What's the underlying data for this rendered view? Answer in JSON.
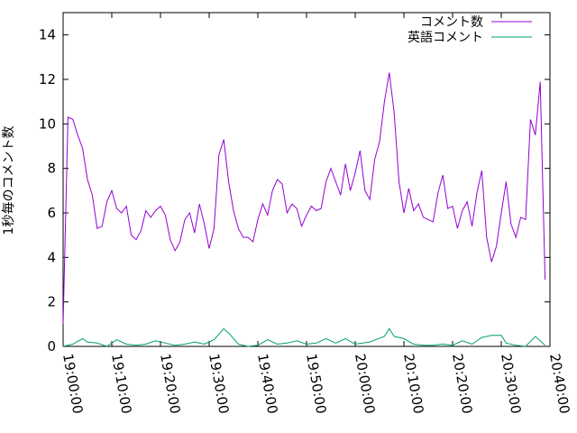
{
  "chart_data": {
    "type": "line",
    "title": "",
    "xlabel": "",
    "ylabel": "1秒毎のコメント数",
    "xlim": [
      "19:00:00",
      "20:40:00"
    ],
    "ylim": [
      0,
      15
    ],
    "x_ticks": [
      "19:00:00",
      "19:10:00",
      "19:20:00",
      "19:30:00",
      "19:40:00",
      "19:50:00",
      "20:00:00",
      "20:10:00",
      "20:20:00",
      "20:30:00",
      "20:40:00"
    ],
    "y_ticks": [
      0,
      2,
      4,
      6,
      8,
      10,
      12,
      14
    ],
    "grid": false,
    "legend_position": "top-right",
    "series": [
      {
        "name": "コメント数",
        "color": "#9400d3",
        "points": [
          [
            "19:00:00",
            1.0
          ],
          [
            "19:01:00",
            10.3
          ],
          [
            "19:02:00",
            10.2
          ],
          [
            "19:03:00",
            9.5
          ],
          [
            "19:04:00",
            8.9
          ],
          [
            "19:05:00",
            7.5
          ],
          [
            "19:06:00",
            6.8
          ],
          [
            "19:07:00",
            5.3
          ],
          [
            "19:08:00",
            5.4
          ],
          [
            "19:09:00",
            6.5
          ],
          [
            "19:10:00",
            7.0
          ],
          [
            "19:11:00",
            6.2
          ],
          [
            "19:12:00",
            6.0
          ],
          [
            "19:13:00",
            6.3
          ],
          [
            "19:14:00",
            5.0
          ],
          [
            "19:15:00",
            4.8
          ],
          [
            "19:16:00",
            5.2
          ],
          [
            "19:17:00",
            6.1
          ],
          [
            "19:18:00",
            5.8
          ],
          [
            "19:19:00",
            6.1
          ],
          [
            "19:20:00",
            6.3
          ],
          [
            "19:21:00",
            5.9
          ],
          [
            "19:22:00",
            4.8
          ],
          [
            "19:23:00",
            4.3
          ],
          [
            "19:24:00",
            4.7
          ],
          [
            "19:25:00",
            5.7
          ],
          [
            "19:26:00",
            6.0
          ],
          [
            "19:27:00",
            5.1
          ],
          [
            "19:28:00",
            6.4
          ],
          [
            "19:29:00",
            5.5
          ],
          [
            "19:30:00",
            4.4
          ],
          [
            "19:31:00",
            5.3
          ],
          [
            "19:32:00",
            8.6
          ],
          [
            "19:33:00",
            9.3
          ],
          [
            "19:34:00",
            7.4
          ],
          [
            "19:35:00",
            6.1
          ],
          [
            "19:36:00",
            5.3
          ],
          [
            "19:37:00",
            4.9
          ],
          [
            "19:38:00",
            4.9
          ],
          [
            "19:39:00",
            4.7
          ],
          [
            "19:40:00",
            5.7
          ],
          [
            "19:41:00",
            6.4
          ],
          [
            "19:42:00",
            5.9
          ],
          [
            "19:43:00",
            7.0
          ],
          [
            "19:44:00",
            7.5
          ],
          [
            "19:45:00",
            7.3
          ],
          [
            "19:46:00",
            6.0
          ],
          [
            "19:47:00",
            6.4
          ],
          [
            "19:48:00",
            6.2
          ],
          [
            "19:49:00",
            5.4
          ],
          [
            "19:50:00",
            5.9
          ],
          [
            "19:51:00",
            6.3
          ],
          [
            "19:52:00",
            6.1
          ],
          [
            "19:53:00",
            6.2
          ],
          [
            "19:54:00",
            7.4
          ],
          [
            "19:55:00",
            8.0
          ],
          [
            "19:56:00",
            7.4
          ],
          [
            "19:57:00",
            6.8
          ],
          [
            "19:58:00",
            8.2
          ],
          [
            "19:59:00",
            7.0
          ],
          [
            "20:00:00",
            7.8
          ],
          [
            "20:01:00",
            8.8
          ],
          [
            "20:02:00",
            7.0
          ],
          [
            "20:03:00",
            6.6
          ],
          [
            "20:04:00",
            8.4
          ],
          [
            "20:05:00",
            9.2
          ],
          [
            "20:06:00",
            11.0
          ],
          [
            "20:07:00",
            12.3
          ],
          [
            "20:08:00",
            10.5
          ],
          [
            "20:09:00",
            7.4
          ],
          [
            "20:10:00",
            6.0
          ],
          [
            "20:11:00",
            7.1
          ],
          [
            "20:12:00",
            6.1
          ],
          [
            "20:13:00",
            6.4
          ],
          [
            "20:14:00",
            5.8
          ],
          [
            "20:15:00",
            5.7
          ],
          [
            "20:16:00",
            5.6
          ],
          [
            "20:17:00",
            6.9
          ],
          [
            "20:18:00",
            7.7
          ],
          [
            "20:19:00",
            6.2
          ],
          [
            "20:20:00",
            6.3
          ],
          [
            "20:21:00",
            5.3
          ],
          [
            "20:22:00",
            6.1
          ],
          [
            "20:23:00",
            6.5
          ],
          [
            "20:24:00",
            5.4
          ],
          [
            "20:25:00",
            6.9
          ],
          [
            "20:26:00",
            7.9
          ],
          [
            "20:27:00",
            4.9
          ],
          [
            "20:28:00",
            3.8
          ],
          [
            "20:29:00",
            4.5
          ],
          [
            "20:30:00",
            6.0
          ],
          [
            "20:31:00",
            7.4
          ],
          [
            "20:32:00",
            5.5
          ],
          [
            "20:33:00",
            4.9
          ],
          [
            "20:34:00",
            5.8
          ],
          [
            "20:35:00",
            5.7
          ],
          [
            "20:36:00",
            10.2
          ],
          [
            "20:37:00",
            9.5
          ],
          [
            "20:38:00",
            11.9
          ],
          [
            "20:39:00",
            3.0
          ]
        ]
      },
      {
        "name": "英語コメント",
        "color": "#009e73",
        "points": [
          [
            "19:00:00",
            0.0
          ],
          [
            "19:02:00",
            0.1
          ],
          [
            "19:04:00",
            0.35
          ],
          [
            "19:05:00",
            0.2
          ],
          [
            "19:07:00",
            0.15
          ],
          [
            "19:09:00",
            0.0
          ],
          [
            "19:11:00",
            0.3
          ],
          [
            "19:13:00",
            0.1
          ],
          [
            "19:15:00",
            0.05
          ],
          [
            "19:17:00",
            0.1
          ],
          [
            "19:19:00",
            0.25
          ],
          [
            "19:21:00",
            0.15
          ],
          [
            "19:23:00",
            0.05
          ],
          [
            "19:25:00",
            0.1
          ],
          [
            "19:27:00",
            0.2
          ],
          [
            "19:29:00",
            0.1
          ],
          [
            "19:31:00",
            0.3
          ],
          [
            "19:33:00",
            0.8
          ],
          [
            "19:34:00",
            0.6
          ],
          [
            "19:36:00",
            0.1
          ],
          [
            "19:38:00",
            0.0
          ],
          [
            "19:40:00",
            0.05
          ],
          [
            "19:42:00",
            0.3
          ],
          [
            "19:44:00",
            0.1
          ],
          [
            "19:46:00",
            0.15
          ],
          [
            "19:48:00",
            0.25
          ],
          [
            "19:50:00",
            0.1
          ],
          [
            "19:52:00",
            0.15
          ],
          [
            "19:54:00",
            0.35
          ],
          [
            "19:56:00",
            0.15
          ],
          [
            "19:58:00",
            0.35
          ],
          [
            "20:00:00",
            0.1
          ],
          [
            "20:03:00",
            0.2
          ],
          [
            "20:06:00",
            0.45
          ],
          [
            "20:07:00",
            0.8
          ],
          [
            "20:08:00",
            0.45
          ],
          [
            "20:10:00",
            0.35
          ],
          [
            "20:12:00",
            0.1
          ],
          [
            "20:14:00",
            0.05
          ],
          [
            "20:16:00",
            0.05
          ],
          [
            "20:18:00",
            0.1
          ],
          [
            "20:20:00",
            0.05
          ],
          [
            "20:22:00",
            0.25
          ],
          [
            "20:24:00",
            0.1
          ],
          [
            "20:26:00",
            0.4
          ],
          [
            "20:28:00",
            0.5
          ],
          [
            "20:30:00",
            0.5
          ],
          [
            "20:31:00",
            0.15
          ],
          [
            "20:33:00",
            0.05
          ],
          [
            "20:35:00",
            0.0
          ],
          [
            "20:37:00",
            0.45
          ],
          [
            "20:39:00",
            0.05
          ]
        ]
      }
    ]
  }
}
